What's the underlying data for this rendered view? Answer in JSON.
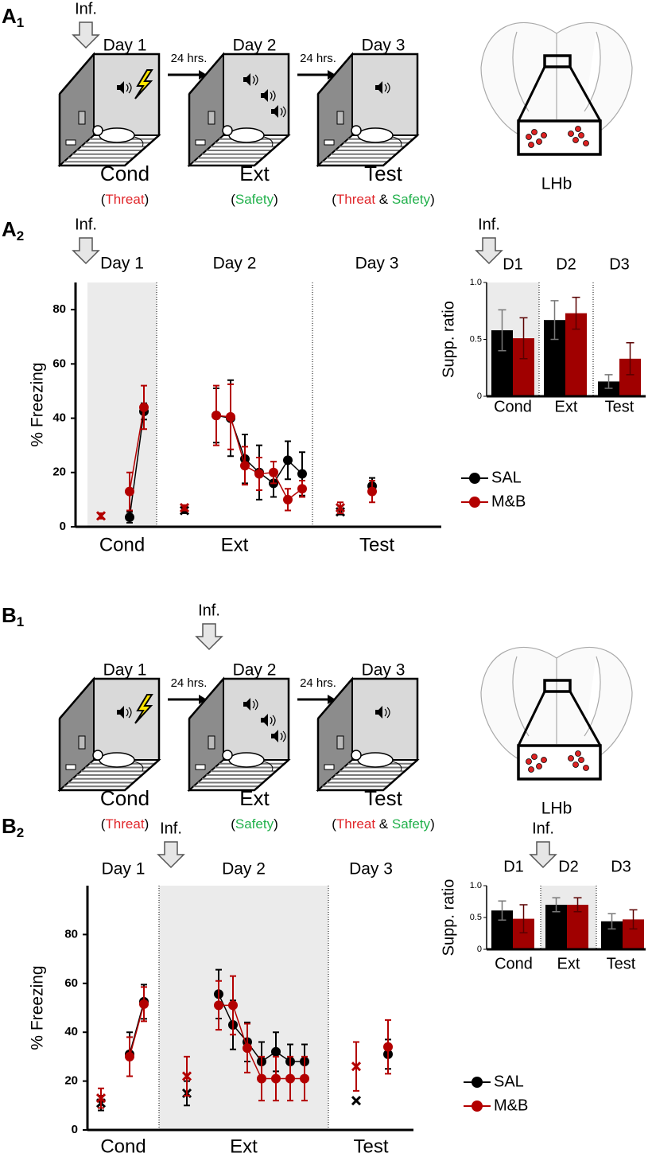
{
  "panels": [
    {
      "letter": "A",
      "sub": "1"
    },
    {
      "letter": "A",
      "sub": "2"
    },
    {
      "letter": "B",
      "sub": "1"
    },
    {
      "letter": "B",
      "sub": "2"
    }
  ],
  "schematics": [
    {
      "infusion": "Inf.",
      "infusion_day": 0,
      "days": [
        "Day 1",
        "Day 2",
        "Day 3"
      ],
      "intervals": [
        "24 hrs.",
        "24 hrs."
      ],
      "phases": [
        "Cond",
        "Ext",
        "Test"
      ],
      "notes": [
        [
          {
            "text": "("
          },
          {
            "text": "Threat",
            "color": "#e0262a"
          },
          {
            "text": ")"
          }
        ],
        [
          {
            "text": "("
          },
          {
            "text": "Safety",
            "color": "#22b14c"
          },
          {
            "text": ")"
          }
        ],
        [
          {
            "text": "("
          },
          {
            "text": "Threat",
            "color": "#e0262a"
          },
          {
            "text": " & "
          },
          {
            "text": "Safety",
            "color": "#22b14c"
          },
          {
            "text": ")"
          }
        ]
      ],
      "region": "LHb"
    },
    {
      "infusion": "Inf.",
      "infusion_day": 1,
      "days": [
        "Day 1",
        "Day 2",
        "Day 3"
      ],
      "intervals": [
        "24 hrs.",
        "24 hrs."
      ],
      "phases": [
        "Cond",
        "Ext",
        "Test"
      ],
      "notes": [
        [
          {
            "text": "("
          },
          {
            "text": "Threat",
            "color": "#e0262a"
          },
          {
            "text": ")"
          }
        ],
        [
          {
            "text": "("
          },
          {
            "text": "Safety",
            "color": "#22b14c"
          },
          {
            "text": ")"
          }
        ],
        [
          {
            "text": "("
          },
          {
            "text": "Threat",
            "color": "#e0262a"
          },
          {
            "text": " & "
          },
          {
            "text": "Safety",
            "color": "#22b14c"
          },
          {
            "text": ")"
          }
        ]
      ],
      "region": "LHb"
    }
  ],
  "chart_data": [
    {
      "type": "line",
      "ylabel": "% Freezing",
      "ylim": [
        0,
        90
      ],
      "yticks": [
        0,
        20,
        40,
        60,
        80
      ],
      "infusion": "Inf.",
      "infusion_phase": 0,
      "shaded_phase": 0,
      "series": [
        {
          "name": "SAL",
          "color": "#000000"
        },
        {
          "name": "M&B",
          "color": "#b30000"
        }
      ],
      "phases": [
        {
          "day": "Day 1",
          "label": "Cond",
          "baseline": [
            null,
            4
          ],
          "baseline_errors": [
            null,
            1
          ],
          "values": [
            [
              3.5,
              42.5
            ],
            [
              13,
              44
            ]
          ],
          "errors": [
            [
              2,
              3
            ],
            [
              7,
              8
            ]
          ]
        },
        {
          "day": "Day 2",
          "label": "Ext",
          "baseline": [
            6,
            7
          ],
          "baseline_errors": [
            1,
            1
          ],
          "values": [
            [
              41,
              40,
              25,
              20,
              16,
              24.5,
              19.5
            ],
            [
              41,
              40.5,
              22.5,
              19.5,
              20,
              10,
              14
            ]
          ],
          "errors": [
            [
              10,
              14,
              9,
              10,
              5,
              7,
              8
            ],
            [
              11,
              12,
              7,
              6,
              4,
              4,
              3
            ]
          ]
        },
        {
          "day": "Day 3",
          "label": "Test",
          "baseline": [
            5.5,
            7
          ],
          "baseline_errors": [
            1,
            2
          ],
          "values": [
            [
              15
            ],
            [
              13
            ]
          ],
          "errors": [
            [
              3
            ],
            [
              4
            ]
          ]
        }
      ]
    },
    {
      "type": "bar",
      "ylabel": "Supp. ratio",
      "ylim": [
        0,
        1
      ],
      "yticks": [
        0,
        0.5,
        {
          "value": 1,
          "label": "1.0"
        }
      ],
      "infusion": "Inf.",
      "infusion_group": 0,
      "shaded_group": 0,
      "colors": [
        "#000000",
        "#a00000"
      ],
      "groups": [
        {
          "day": "D1",
          "label": "Cond",
          "values": [
            0.58,
            0.51
          ],
          "errors": [
            0.18,
            0.18
          ]
        },
        {
          "day": "D2",
          "label": "Ext",
          "values": [
            0.67,
            0.73
          ],
          "errors": [
            0.17,
            0.14
          ]
        },
        {
          "day": "D3",
          "label": "Test",
          "values": [
            0.13,
            0.33
          ],
          "errors": [
            0.06,
            0.14
          ]
        }
      ]
    },
    {
      "type": "line",
      "ylabel": "% Freezing",
      "ylim": [
        0,
        100
      ],
      "yticks": [
        0,
        20,
        40,
        60,
        80
      ],
      "infusion": "Inf.",
      "infusion_phase": 1,
      "shaded_phase": 1,
      "series": [
        {
          "name": "SAL",
          "color": "#000000"
        },
        {
          "name": "M&B",
          "color": "#b30000"
        }
      ],
      "phases": [
        {
          "day": "Day 1",
          "label": "Cond",
          "baseline": [
            11,
            13
          ],
          "baseline_errors": [
            3,
            4
          ],
          "values": [
            [
              31,
              52.5
            ],
            [
              30,
              51.5
            ]
          ],
          "errors": [
            [
              9,
              7
            ],
            [
              8,
              7
            ]
          ]
        },
        {
          "day": "Day 2",
          "label": "Ext",
          "baseline": [
            15,
            22
          ],
          "baseline_errors": [
            5,
            8
          ],
          "values": [
            [
              55.6,
              43,
              36,
              28,
              32,
              28,
              28
            ],
            [
              51,
              51,
              33.5,
              21,
              21,
              21,
              21
            ]
          ],
          "errors": [
            [
              10,
              10,
              8,
              8,
              8,
              7,
              7
            ],
            [
              10,
              12,
              10,
              9,
              9,
              9,
              9
            ]
          ]
        },
        {
          "day": "Day 3",
          "label": "Test",
          "baseline": [
            12,
            26
          ],
          "baseline_errors": [
            null,
            10
          ],
          "values": [
            [
              31
            ],
            [
              34
            ]
          ],
          "errors": [
            [
              6
            ],
            [
              11
            ]
          ]
        }
      ]
    },
    {
      "type": "bar",
      "ylabel": "Supp. ratio",
      "ylim": [
        0,
        1
      ],
      "yticks": [
        0,
        0.5,
        {
          "value": 1,
          "label": "1.0"
        }
      ],
      "infusion": "Inf.",
      "infusion_group": 1,
      "shaded_group": 1,
      "colors": [
        "#000000",
        "#a00000"
      ],
      "groups": [
        {
          "day": "D1",
          "label": "Cond",
          "values": [
            0.61,
            0.48
          ],
          "errors": [
            0.15,
            0.22
          ]
        },
        {
          "day": "D2",
          "label": "Ext",
          "values": [
            0.7,
            0.7
          ],
          "errors": [
            0.11,
            0.11
          ]
        },
        {
          "day": "D3",
          "label": "Test",
          "values": [
            0.44,
            0.47
          ],
          "errors": [
            0.12,
            0.15
          ]
        }
      ]
    }
  ]
}
